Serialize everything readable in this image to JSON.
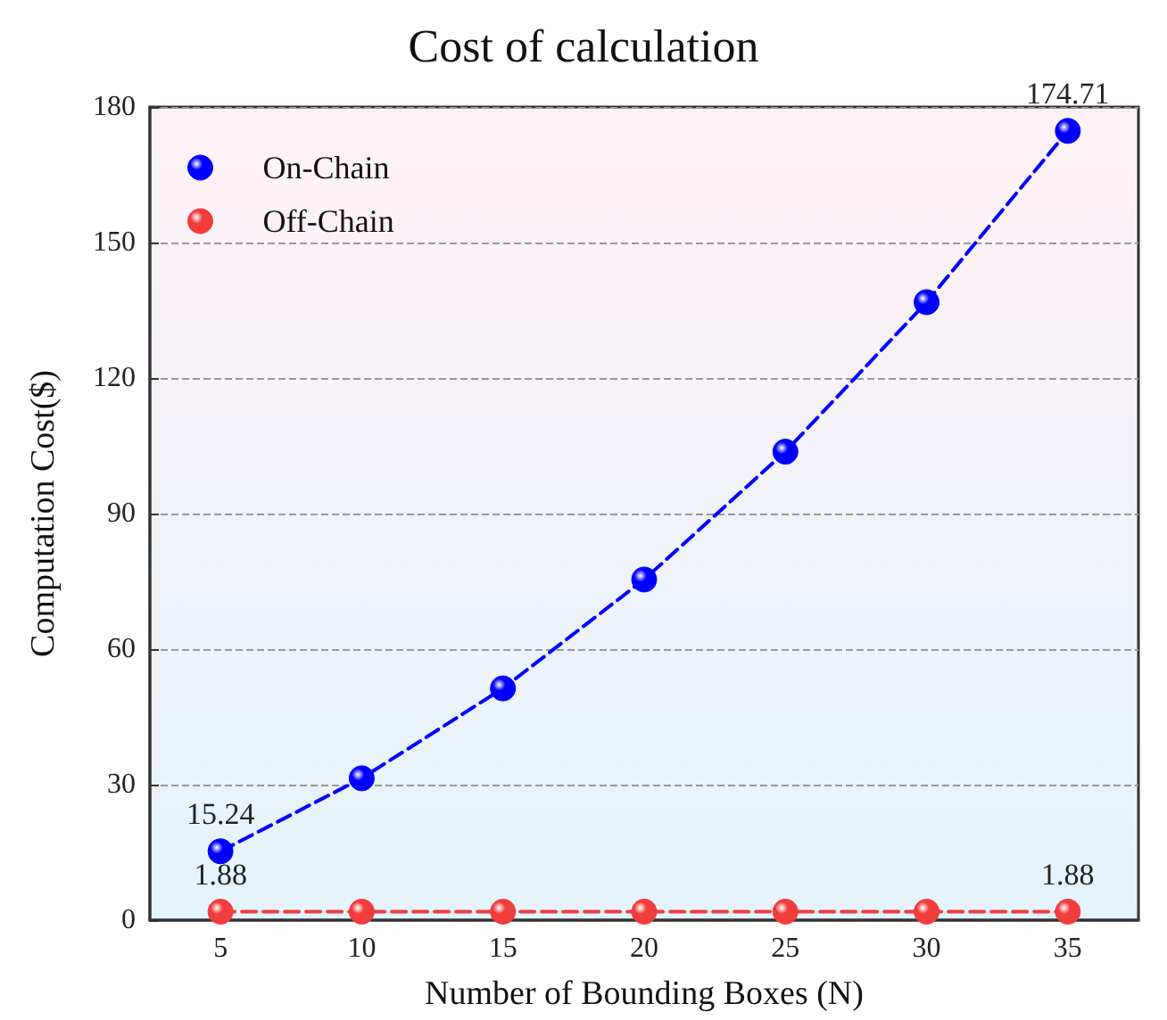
{
  "chart_data": {
    "type": "line",
    "title": "Cost of calculation",
    "xlabel": "Number of Bounding Boxes (N)",
    "ylabel": "Computation Cost($)",
    "categories": [
      "5",
      "10",
      "15",
      "20",
      "25",
      "30",
      "35"
    ],
    "series": [
      {
        "name": "On-Chain",
        "color": "#0000ff",
        "values": [
          15.24,
          31.4,
          51.3,
          75.4,
          103.7,
          136.8,
          174.71
        ],
        "value_labels": [
          "15.24",
          null,
          null,
          null,
          null,
          null,
          "174.71"
        ]
      },
      {
        "name": "Off-Chain",
        "color": "#f03c3c",
        "values": [
          1.88,
          1.88,
          1.88,
          1.88,
          1.88,
          1.88,
          1.88
        ],
        "value_labels": [
          "1.88",
          null,
          null,
          null,
          null,
          null,
          "1.88"
        ]
      }
    ],
    "ylim": [
      0,
      180
    ],
    "yticks": [
      0,
      30,
      60,
      90,
      120,
      150,
      180
    ],
    "grid": "y",
    "legend": "top left",
    "marker": "circle",
    "line_style": "dashed"
  }
}
